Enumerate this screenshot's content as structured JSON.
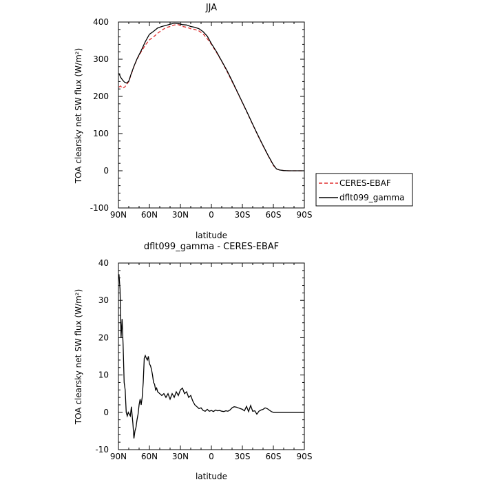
{
  "chart_data": [
    {
      "type": "line",
      "title": "JJA",
      "xlabel": "latitude",
      "ylabel": "TOA clearsky net SW flux (W/m²)",
      "xlim": [
        90,
        -90
      ],
      "ylim": [
        -100,
        400
      ],
      "x_tick_values": [
        90,
        60,
        30,
        0,
        -30,
        -60,
        -90
      ],
      "x_tick_labels": [
        "90N",
        "60N",
        "30N",
        "0",
        "30S",
        "60S",
        "90S"
      ],
      "y_tick_values": [
        -100,
        0,
        100,
        200,
        300,
        400
      ],
      "y_tick_labels": [
        "-100",
        "0",
        "100",
        "200",
        "300",
        "400"
      ],
      "legend": {
        "position": "outside-right"
      },
      "series": [
        {
          "name": "CERES-EBAF",
          "color": "#e03030",
          "dash": true,
          "x": [
            89.5,
            88,
            86,
            84,
            82,
            80,
            78,
            75,
            72,
            68,
            64,
            60,
            56,
            52,
            48,
            44,
            40,
            36,
            32,
            28,
            24,
            20,
            16,
            12,
            8,
            4,
            0,
            -5,
            -10,
            -15,
            -20,
            -25,
            -30,
            -35,
            -40,
            -45,
            -50,
            -55,
            -60,
            -63,
            -66,
            -70,
            -75,
            -80,
            -85,
            -89.5
          ],
          "y": [
            225,
            228,
            222,
            225,
            232,
            240,
            256,
            280,
            300,
            320,
            338,
            352,
            360,
            370,
            378,
            385,
            388,
            392,
            393,
            388,
            386,
            382,
            380,
            376,
            368,
            355,
            340,
            318,
            294,
            268,
            240,
            212,
            183,
            154,
            124,
            95,
            67,
            40,
            14,
            5,
            2,
            0.5,
            0,
            0,
            0,
            0
          ]
        },
        {
          "name": "dflt099_gamma",
          "color": "#000000",
          "dash": false,
          "x": [
            89.5,
            88,
            86,
            84,
            82,
            80,
            78,
            75,
            72,
            68,
            64,
            60,
            56,
            52,
            48,
            44,
            40,
            36,
            32,
            28,
            24,
            20,
            16,
            12,
            8,
            4,
            0,
            -5,
            -10,
            -15,
            -20,
            -25,
            -30,
            -35,
            -40,
            -45,
            -50,
            -55,
            -60,
            -63,
            -66,
            -70,
            -75,
            -80,
            -85,
            -89.5
          ],
          "y": [
            262,
            252,
            244,
            238,
            236,
            241,
            258,
            281,
            301,
            323,
            347,
            367,
            375,
            384,
            388,
            391,
            394,
            397,
            396,
            393,
            392,
            388,
            386,
            382,
            374,
            362,
            342,
            320,
            295,
            270,
            242,
            213,
            184,
            155,
            125,
            96,
            68,
            41,
            16,
            5,
            2,
            0.5,
            0,
            0,
            0,
            0
          ]
        }
      ]
    },
    {
      "type": "line",
      "title": "dflt099_gamma - CERES-EBAF",
      "xlabel": "latitude",
      "ylabel": "TOA clearsky net SW flux (W/m²)",
      "xlim": [
        90,
        -90
      ],
      "ylim": [
        -10,
        40
      ],
      "x_tick_values": [
        90,
        60,
        30,
        0,
        -30,
        -60,
        -90
      ],
      "x_tick_labels": [
        "90N",
        "60N",
        "30N",
        "0",
        "30S",
        "60S",
        "90S"
      ],
      "y_tick_values": [
        -10,
        0,
        10,
        20,
        30,
        40
      ],
      "y_tick_labels": [
        "-10",
        "0",
        "10",
        "20",
        "30",
        "40"
      ],
      "series": [
        {
          "color": "#000000",
          "dash": false,
          "x": [
            89.5,
            88.5,
            87.5,
            86.5,
            85.5,
            84.5,
            83.5,
            82.5,
            81.5,
            80.5,
            79.5,
            78.5,
            77.5,
            76,
            75,
            74,
            73,
            72,
            71,
            70,
            69,
            68,
            67,
            66,
            65,
            64,
            63,
            62,
            61,
            60,
            59,
            58,
            57,
            56,
            55,
            54,
            53,
            52,
            50,
            48,
            46,
            44,
            42,
            40,
            38,
            36,
            34,
            32,
            30,
            28,
            26,
            24,
            22,
            20,
            18,
            16,
            14,
            12,
            10,
            8,
            6,
            4,
            2,
            0,
            -2,
            -4,
            -6,
            -8,
            -10,
            -12,
            -14,
            -16,
            -18,
            -20,
            -22,
            -24,
            -26,
            -28,
            -30,
            -32,
            -34,
            -36,
            -38,
            -40,
            -42,
            -44,
            -46,
            -48,
            -50,
            -52,
            -54,
            -56,
            -58,
            -60,
            -61,
            -62,
            -63,
            -64,
            -65,
            -66,
            -67,
            -68,
            -69,
            -70,
            -72,
            -74,
            -76,
            -78,
            -80,
            -82,
            -84,
            -86,
            -89.5
          ],
          "y": [
            37,
            33,
            20,
            25,
            18,
            8,
            6,
            0,
            -1,
            0,
            -0.5,
            -1,
            1.5,
            -3,
            -7,
            -5,
            -4,
            -2,
            -0.5,
            2,
            3.5,
            2,
            4,
            8,
            14.5,
            15.2,
            14.5,
            14,
            15,
            13,
            12.5,
            11.5,
            10,
            8,
            7.5,
            6,
            6.5,
            5.5,
            5,
            4.5,
            5,
            4,
            5,
            3.5,
            5,
            4,
            5.5,
            4.5,
            6,
            6.5,
            5,
            5.5,
            4,
            4.5,
            3,
            2,
            1.5,
            1,
            1.2,
            0.5,
            0.3,
            0.8,
            0.3,
            0.5,
            0.2,
            0.6,
            0.4,
            0.5,
            0.3,
            0.2,
            0.4,
            0.3,
            0.6,
            1.2,
            1.5,
            1.4,
            1.2,
            1.0,
            0.8,
            0.4,
            1.6,
            0.2,
            1.8,
            0.3,
            0.4,
            -0.5,
            0.3,
            0.6,
            0.8,
            1.2,
            1.0,
            0.6,
            0.2,
            0,
            0,
            0,
            0,
            0,
            0,
            0,
            0,
            0,
            0,
            0,
            0,
            0,
            0,
            0,
            0,
            0,
            0,
            0,
            0
          ]
        }
      ]
    }
  ]
}
